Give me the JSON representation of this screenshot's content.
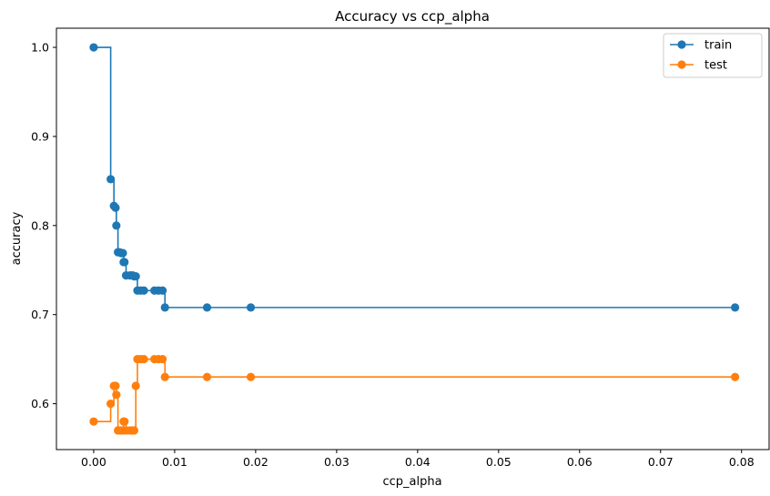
{
  "chart_data": {
    "type": "line",
    "title": "Accuracy vs ccp_alpha",
    "xlabel": "ccp_alpha",
    "ylabel": "accuracy",
    "xlim": [
      -0.0046,
      0.0834
    ],
    "ylim": [
      0.5485,
      1.0215
    ],
    "xticks": [
      0.0,
      0.01,
      0.02,
      0.03,
      0.04,
      0.05,
      0.06,
      0.07,
      0.08
    ],
    "xtick_labels": [
      "0.00",
      "0.01",
      "0.02",
      "0.03",
      "0.04",
      "0.05",
      "0.06",
      "0.07",
      "0.08"
    ],
    "yticks": [
      0.6,
      0.7,
      0.8,
      0.9,
      1.0
    ],
    "ytick_labels": [
      "0.6",
      "0.7",
      "0.8",
      "0.9",
      "1.0"
    ],
    "drawstyle": "steps-post",
    "grid": false,
    "legend_position": "top-right",
    "series": [
      {
        "name": "train",
        "color": "#1f77b4",
        "x": [
          0.0,
          0.0021,
          0.0025,
          0.0027,
          0.0028,
          0.003,
          0.0032,
          0.0034,
          0.0036,
          0.0037,
          0.0038,
          0.004,
          0.0045,
          0.0048,
          0.005,
          0.0052,
          0.0054,
          0.0058,
          0.0062,
          0.0075,
          0.008,
          0.0085,
          0.0088,
          0.014,
          0.0194,
          0.0792
        ],
        "y": [
          1.0,
          0.852,
          0.822,
          0.82,
          0.8,
          0.77,
          0.77,
          0.769,
          0.769,
          0.759,
          0.759,
          0.744,
          0.744,
          0.744,
          0.743,
          0.743,
          0.727,
          0.727,
          0.727,
          0.727,
          0.727,
          0.727,
          0.708,
          0.708,
          0.708,
          0.708
        ]
      },
      {
        "name": "test",
        "color": "#ff7f0e",
        "x": [
          0.0,
          0.0021,
          0.0025,
          0.0027,
          0.0028,
          0.003,
          0.0032,
          0.0034,
          0.0036,
          0.0037,
          0.0038,
          0.004,
          0.0045,
          0.0048,
          0.005,
          0.0052,
          0.0054,
          0.0058,
          0.0062,
          0.0075,
          0.008,
          0.0085,
          0.0088,
          0.014,
          0.0194,
          0.0792
        ],
        "y": [
          0.58,
          0.6,
          0.62,
          0.62,
          0.61,
          0.57,
          0.57,
          0.57,
          0.57,
          0.58,
          0.58,
          0.57,
          0.57,
          0.57,
          0.57,
          0.62,
          0.65,
          0.65,
          0.65,
          0.65,
          0.65,
          0.65,
          0.63,
          0.63,
          0.63,
          0.63
        ]
      }
    ]
  }
}
